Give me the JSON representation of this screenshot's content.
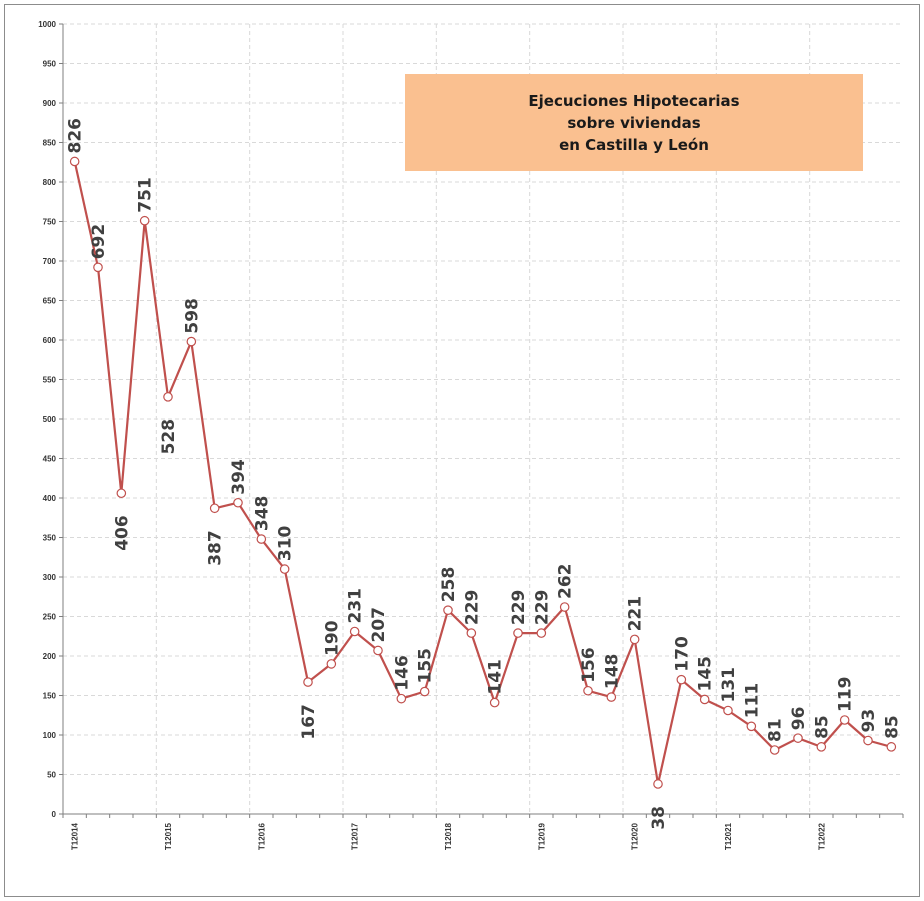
{
  "title_lines": [
    "Ejecuciones Hipotecarias",
    "sobre viviendas",
    "en Castilla y León"
  ],
  "colors": {
    "line": "#c0504d",
    "marker_fill": "#ffffff",
    "title_bg": "#fac090",
    "grid": "#d9d9d9"
  },
  "chart_data": {
    "type": "line",
    "title": "Ejecuciones Hipotecarias sobre viviendas en Castilla y León",
    "xlabel": "",
    "ylabel": "",
    "ylim": [
      0,
      1000
    ],
    "yticks": [
      0,
      50,
      100,
      150,
      200,
      250,
      300,
      350,
      400,
      450,
      500,
      550,
      600,
      650,
      700,
      750,
      800,
      850,
      900,
      950,
      1000
    ],
    "year_labels": [
      "T12014",
      "T12015",
      "T12016",
      "T12017",
      "T12018",
      "T12019",
      "T12020",
      "T12021",
      "T12022"
    ],
    "grid": true,
    "legend": "none",
    "series": [
      {
        "values": [
          826,
          692,
          406,
          751,
          528,
          598,
          387,
          394,
          348,
          310,
          167,
          190,
          231,
          207,
          146,
          155,
          258,
          229,
          141,
          229,
          229,
          262,
          156,
          148,
          221,
          38,
          170,
          145,
          131,
          111,
          81,
          96,
          85,
          119,
          93,
          85
        ]
      }
    ]
  }
}
